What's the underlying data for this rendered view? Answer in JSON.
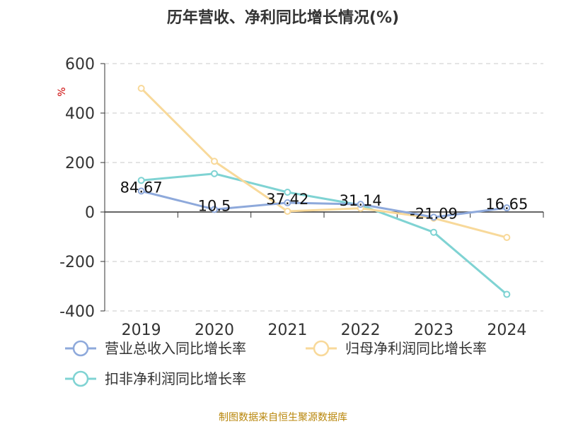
{
  "chart_data": {
    "type": "line",
    "title": "历年营收、净利同比增长情况(%)",
    "ylabel": "%",
    "categories": [
      "2019",
      "2020",
      "2021",
      "2022",
      "2023",
      "2024"
    ],
    "ylim": [
      -400,
      600
    ],
    "yticks": [
      600,
      400,
      200,
      0,
      -200,
      -400
    ],
    "yticklabels": [
      "600",
      "400",
      "200",
      "0",
      "-200",
      "-400"
    ],
    "grid": true,
    "legend_position": "bottom-left",
    "series": [
      {
        "name": "营业总收入同比增长率",
        "values": [
          84.67,
          10.5,
          37.42,
          31.14,
          -21.09,
          16.65
        ],
        "labels": [
          "84.67",
          "10.5",
          "37.42",
          "31.14",
          "-21.09",
          "16.65"
        ],
        "color": "#8ea9db"
      },
      {
        "name": "归母净利润同比增长率",
        "values": [
          500,
          205,
          3,
          15,
          -25,
          -103
        ],
        "color": "#f8d99a"
      },
      {
        "name": "扣非净利润同比增长率",
        "values": [
          128,
          155,
          80,
          28,
          -82,
          -333
        ],
        "color": "#7fd3d3"
      }
    ]
  },
  "source": "制图数据来自恒生聚源数据库"
}
